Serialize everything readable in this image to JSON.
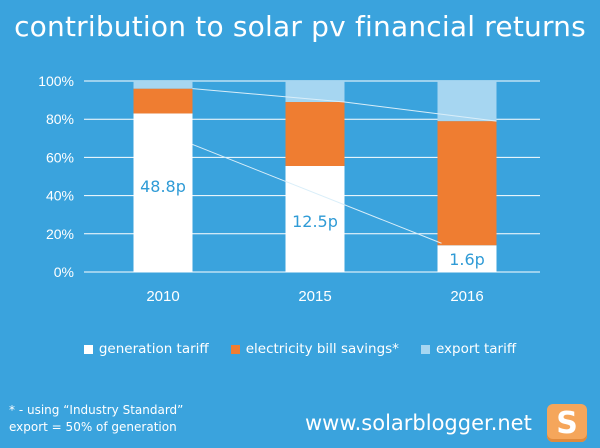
{
  "title": "contribution to solar pv financial returns",
  "chart_data": {
    "type": "bar",
    "stacked": true,
    "categories": [
      "2010",
      "2015",
      "2016"
    ],
    "series": [
      {
        "name": "generation tariff",
        "values": [
          83,
          55.5,
          14
        ],
        "color": "#ffffff"
      },
      {
        "name": "electricity bill savings*",
        "values": [
          13,
          33.5,
          65
        ],
        "color": "#ef7d31"
      },
      {
        "name": "export tariff",
        "values": [
          4,
          11,
          21
        ],
        "color": "#a6d6f1"
      }
    ],
    "data_labels": [
      "48.8p",
      "12.5p",
      "1.6p"
    ],
    "y_ticks": [
      "0%",
      "20%",
      "40%",
      "60%",
      "80%",
      "100%"
    ],
    "ylim": [
      0,
      100
    ],
    "grid": true,
    "legend_position": "bottom",
    "has_trend_lines": true
  },
  "footnote": {
    "line1": "* - using “Industry Standard”",
    "line2": "export = 50% of generation"
  },
  "website": "www.solarblogger.net",
  "logo_letter": "S"
}
